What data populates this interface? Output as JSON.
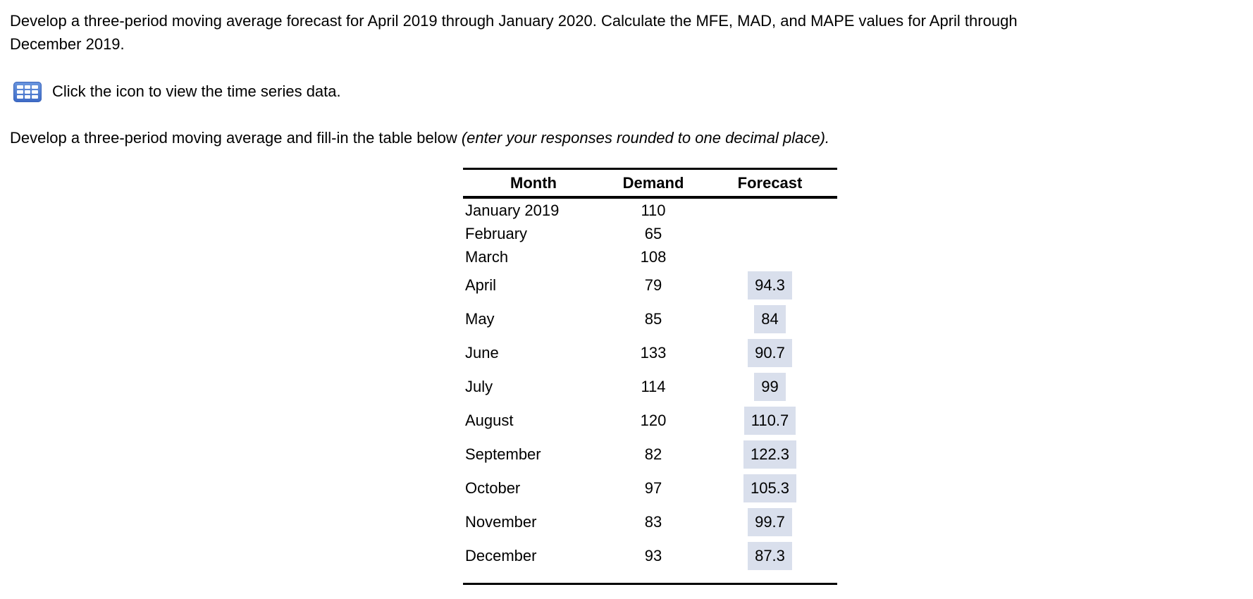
{
  "question": {
    "line1": "Develop a three-period moving average forecast for April 2019 through January 2020. Calculate the MFE, MAD, and MAPE values for April through",
    "line2": "December 2019."
  },
  "data_link": {
    "icon": "table-grid-icon",
    "label": "Click the icon to view the time series data."
  },
  "instruction": {
    "normal": "Develop a three-period moving average and fill-in the table below ",
    "italic": "(enter your responses rounded to one decimal place)."
  },
  "table": {
    "headers": {
      "month": "Month",
      "demand": "Demand",
      "forecast": "Forecast"
    },
    "rows": [
      {
        "month": "January 2019",
        "demand": "110",
        "forecast": ""
      },
      {
        "month": "February",
        "demand": "65",
        "forecast": ""
      },
      {
        "month": "March",
        "demand": "108",
        "forecast": ""
      },
      {
        "month": "April",
        "demand": "79",
        "forecast": "94.3"
      },
      {
        "month": "May",
        "demand": "85",
        "forecast": "84"
      },
      {
        "month": "June",
        "demand": "133",
        "forecast": "90.7"
      },
      {
        "month": "July",
        "demand": "114",
        "forecast": "99"
      },
      {
        "month": "August",
        "demand": "120",
        "forecast": "110.7"
      },
      {
        "month": "September",
        "demand": "82",
        "forecast": "122.3"
      },
      {
        "month": "October",
        "demand": "97",
        "forecast": "105.3"
      },
      {
        "month": "November",
        "demand": "83",
        "forecast": "99.7"
      },
      {
        "month": "December",
        "demand": "93",
        "forecast": "87.3"
      }
    ]
  },
  "colors": {
    "answer_box_bg": "#d9dfec",
    "icon_blue": "#4a7ed5",
    "text": "#000000"
  }
}
